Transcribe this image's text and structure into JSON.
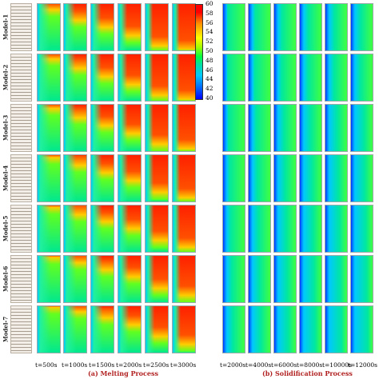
{
  "models": [
    "Model-1",
    "Model-2",
    "Model-3",
    "Model-4",
    "Model-5",
    "Model-6",
    "Model-7"
  ],
  "melting_times": [
    "t=500s",
    "t=1000s",
    "t=1500s",
    "t=2000s",
    "t=2500s",
    "t=3000s"
  ],
  "solidification_times": [
    "t=2000s",
    "t=4000s",
    "t=6000s",
    "t=8000s",
    "t=10000s",
    "t=12000s"
  ],
  "captions": {
    "melting": "(a)  Melting Process",
    "solidification": "(b)  Solidification Process"
  },
  "colorbar": {
    "ticks": [
      "60",
      "58",
      "56",
      "54",
      "52",
      "50",
      "48",
      "46",
      "44",
      "42",
      "40"
    ],
    "min": 40,
    "max": 60,
    "colors": [
      "#0000ff",
      "#00c8ff",
      "#00ff40",
      "#ffff00",
      "#ff0000"
    ]
  },
  "melt_fraction": [
    [
      0.12,
      0.35,
      0.5,
      0.68,
      0.9,
      0.98
    ],
    [
      0.1,
      0.3,
      0.48,
      0.65,
      0.88,
      0.97
    ],
    [
      0.08,
      0.28,
      0.45,
      0.62,
      0.85,
      0.95
    ],
    [
      0.05,
      0.22,
      0.38,
      0.55,
      0.8,
      0.92
    ],
    [
      0.04,
      0.2,
      0.35,
      0.5,
      0.75,
      0.9
    ],
    [
      0.03,
      0.15,
      0.3,
      0.45,
      0.7,
      0.85
    ],
    [
      0.02,
      0.12,
      0.25,
      0.4,
      0.65,
      0.82
    ]
  ],
  "solid_fraction": [
    [
      0.2,
      0.3,
      0.35,
      0.4,
      0.42,
      0.45
    ],
    [
      0.2,
      0.28,
      0.33,
      0.38,
      0.4,
      0.42
    ],
    [
      0.25,
      0.35,
      0.45,
      0.5,
      0.55,
      0.6
    ],
    [
      0.3,
      0.4,
      0.5,
      0.55,
      0.6,
      0.62
    ],
    [
      0.35,
      0.45,
      0.55,
      0.6,
      0.65,
      0.68
    ],
    [
      0.4,
      0.5,
      0.6,
      0.65,
      0.7,
      0.72
    ],
    [
      0.45,
      0.55,
      0.65,
      0.7,
      0.75,
      0.78
    ]
  ]
}
